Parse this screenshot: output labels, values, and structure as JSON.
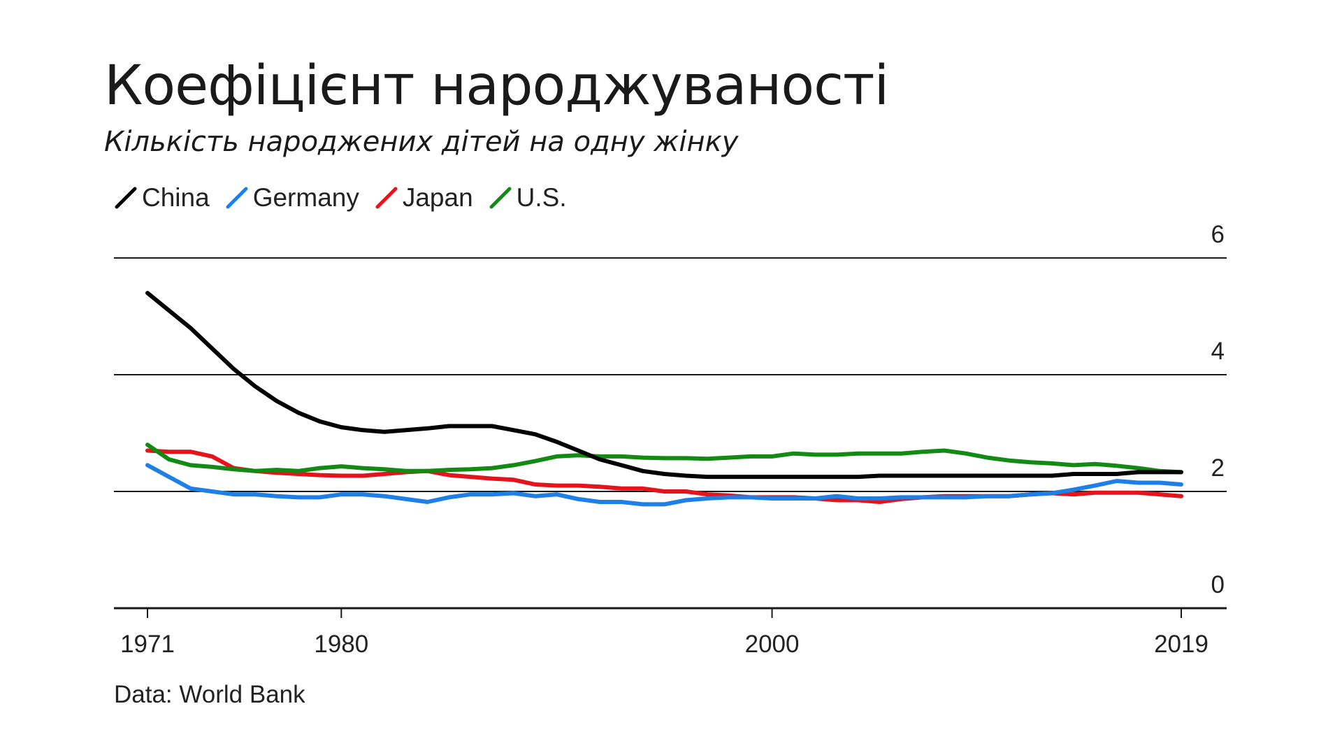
{
  "slide": {
    "title": "Коефіцієнт народжуваності",
    "subtitle": "Кількість народжених дітей на одну жінку"
  },
  "source": "Data: World Bank",
  "chart_data": {
    "type": "line",
    "title": "",
    "xlabel": "",
    "ylabel": "",
    "xlim": [
      1971,
      2019
    ],
    "ylim": [
      0,
      6
    ],
    "y_ticks": [
      0,
      2,
      4,
      6
    ],
    "x_ticks": [
      1971,
      1980,
      2000,
      2019
    ],
    "y_tick_labels": [
      "0",
      "2",
      "4",
      "6"
    ],
    "x_tick_labels": [
      "1971",
      "1980",
      "2000",
      "2019"
    ],
    "grid": "horizontal",
    "y_axis_side": "right",
    "legend": "top-left",
    "x": [
      1971,
      1972,
      1973,
      1974,
      1975,
      1976,
      1977,
      1978,
      1979,
      1980,
      1981,
      1982,
      1983,
      1984,
      1985,
      1986,
      1987,
      1988,
      1989,
      1990,
      1991,
      1992,
      1993,
      1994,
      1995,
      1996,
      1997,
      1998,
      1999,
      2000,
      2001,
      2002,
      2003,
      2004,
      2005,
      2006,
      2007,
      2008,
      2009,
      2010,
      2011,
      2012,
      2013,
      2014,
      2015,
      2016,
      2017,
      2018,
      2019
    ],
    "series": [
      {
        "name": "China",
        "color": "#000000",
        "values": [
          5.4,
          5.1,
          4.8,
          4.45,
          4.1,
          3.8,
          3.55,
          3.35,
          3.2,
          3.1,
          3.05,
          3.02,
          3.05,
          3.08,
          3.12,
          3.12,
          3.12,
          3.05,
          2.98,
          2.85,
          2.7,
          2.55,
          2.45,
          2.35,
          2.3,
          2.27,
          2.25,
          2.25,
          2.25,
          2.25,
          2.25,
          2.25,
          2.25,
          2.25,
          2.27,
          2.27,
          2.27,
          2.27,
          2.27,
          2.27,
          2.27,
          2.27,
          2.27,
          2.3,
          2.3,
          2.3,
          2.33,
          2.33,
          2.33
        ]
      },
      {
        "name": "Germany",
        "color": "#1e7fe6",
        "values": [
          2.45,
          2.25,
          2.05,
          2.0,
          1.95,
          1.95,
          1.92,
          1.9,
          1.9,
          1.95,
          1.95,
          1.92,
          1.87,
          1.82,
          1.9,
          1.95,
          1.95,
          1.97,
          1.92,
          1.95,
          1.87,
          1.82,
          1.82,
          1.78,
          1.78,
          1.85,
          1.88,
          1.9,
          1.9,
          1.88,
          1.88,
          1.88,
          1.92,
          1.88,
          1.88,
          1.9,
          1.9,
          1.9,
          1.9,
          1.92,
          1.92,
          1.95,
          1.97,
          2.03,
          2.1,
          2.18,
          2.15,
          2.15,
          2.12
        ]
      },
      {
        "name": "Japan",
        "color": "#e3141b",
        "values": [
          2.7,
          2.68,
          2.68,
          2.6,
          2.4,
          2.35,
          2.32,
          2.3,
          2.28,
          2.27,
          2.27,
          2.3,
          2.33,
          2.35,
          2.28,
          2.25,
          2.22,
          2.2,
          2.12,
          2.1,
          2.1,
          2.08,
          2.05,
          2.05,
          2.0,
          2.0,
          1.95,
          1.93,
          1.9,
          1.9,
          1.9,
          1.88,
          1.85,
          1.85,
          1.82,
          1.87,
          1.9,
          1.92,
          1.92,
          1.92,
          1.92,
          1.95,
          1.97,
          1.95,
          1.98,
          1.98,
          1.98,
          1.95,
          1.92
        ]
      },
      {
        "name": "U.S.",
        "color": "#138a13",
        "values": [
          2.8,
          2.55,
          2.45,
          2.42,
          2.38,
          2.35,
          2.37,
          2.35,
          2.4,
          2.43,
          2.4,
          2.38,
          2.35,
          2.35,
          2.37,
          2.38,
          2.4,
          2.45,
          2.52,
          2.6,
          2.62,
          2.6,
          2.6,
          2.58,
          2.57,
          2.57,
          2.56,
          2.58,
          2.6,
          2.6,
          2.65,
          2.63,
          2.63,
          2.65,
          2.65,
          2.65,
          2.68,
          2.7,
          2.65,
          2.58,
          2.53,
          2.5,
          2.48,
          2.45,
          2.47,
          2.44,
          2.4,
          2.35,
          2.33
        ]
      }
    ]
  }
}
